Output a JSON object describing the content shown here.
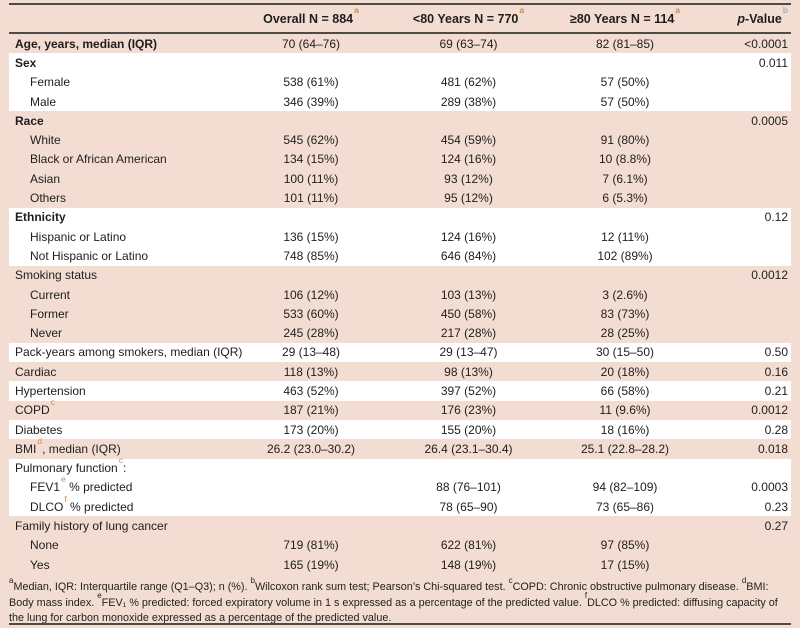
{
  "colors": {
    "page_background": "#f3dcd1",
    "band_white": "#ffffff",
    "rule": "#4e4a45",
    "superscript_orange": "#cd8a50",
    "superscript_blue": "#8fb9cf",
    "text": "#1e1e1e"
  },
  "table": {
    "columns": [
      {
        "label": "",
        "align": "left"
      },
      {
        "label": "Overall N = 884",
        "sup": "a",
        "sup_color": "#cd8a50",
        "align": "center"
      },
      {
        "label": "<80 Years N = 770",
        "sup": "a",
        "sup_color": "#cd8a50",
        "align": "center"
      },
      {
        "label": "≥80 Years N = 114",
        "sup": "a",
        "sup_color": "#cd8a50",
        "align": "center"
      },
      {
        "italic_pre": "p",
        "label": "-Value",
        "sup": "b",
        "sup_color": "#8fb9cf",
        "align": "right"
      }
    ],
    "rows": [
      {
        "label": "Age, years, median (IQR)",
        "bold": true,
        "indent": 0,
        "band": "pink",
        "overall": "70 (64–76)",
        "under80": "69 (63–74)",
        "over80": "82 (81–85)",
        "p": "<0.0001"
      },
      {
        "label": "Sex",
        "bold": true,
        "indent": 0,
        "band": "white",
        "overall": "",
        "under80": "",
        "over80": "",
        "p": "0.011"
      },
      {
        "label": "Female",
        "bold": false,
        "indent": 1,
        "band": "white",
        "overall": "538 (61%)",
        "under80": "481 (62%)",
        "over80": "57 (50%)",
        "p": ""
      },
      {
        "label": "Male",
        "bold": false,
        "indent": 1,
        "band": "white",
        "overall": "346 (39%)",
        "under80": "289 (38%)",
        "over80": "57 (50%)",
        "p": ""
      },
      {
        "label": "Race",
        "bold": true,
        "indent": 0,
        "band": "pink",
        "overall": "",
        "under80": "",
        "over80": "",
        "p": "0.0005"
      },
      {
        "label": "White",
        "bold": false,
        "indent": 1,
        "band": "pink",
        "overall": "545 (62%)",
        "under80": "454 (59%)",
        "over80": "91 (80%)",
        "p": ""
      },
      {
        "label": "Black or African American",
        "bold": false,
        "indent": 1,
        "band": "pink",
        "overall": "134 (15%)",
        "under80": "124 (16%)",
        "over80": "10 (8.8%)",
        "p": ""
      },
      {
        "label": "Asian",
        "bold": false,
        "indent": 1,
        "band": "pink",
        "overall": "100 (11%)",
        "under80": "93 (12%)",
        "over80": "7 (6.1%)",
        "p": ""
      },
      {
        "label": "Others",
        "bold": false,
        "indent": 1,
        "band": "pink",
        "overall": "101 (11%)",
        "under80": "95 (12%)",
        "over80": "6 (5.3%)",
        "p": ""
      },
      {
        "label": "Ethnicity",
        "bold": true,
        "indent": 0,
        "band": "white",
        "overall": "",
        "under80": "",
        "over80": "",
        "p": "0.12"
      },
      {
        "label": "Hispanic or Latino",
        "bold": false,
        "indent": 1,
        "band": "white",
        "overall": "136 (15%)",
        "under80": "124 (16%)",
        "over80": "12 (11%)",
        "p": ""
      },
      {
        "label": "Not Hispanic or Latino",
        "bold": false,
        "indent": 1,
        "band": "white",
        "overall": "748 (85%)",
        "under80": "646 (84%)",
        "over80": "102 (89%)",
        "p": ""
      },
      {
        "label": "Smoking status",
        "bold": false,
        "indent": 0,
        "band": "pink",
        "overall": "",
        "under80": "",
        "over80": "",
        "p": "0.0012"
      },
      {
        "label": "Current",
        "bold": false,
        "indent": 1,
        "band": "pink",
        "overall": "106 (12%)",
        "under80": "103 (13%)",
        "over80": "3 (2.6%)",
        "p": ""
      },
      {
        "label": "Former",
        "bold": false,
        "indent": 1,
        "band": "pink",
        "overall": "533 (60%)",
        "under80": "450 (58%)",
        "over80": "83 (73%)",
        "p": ""
      },
      {
        "label": "Never",
        "bold": false,
        "indent": 1,
        "band": "pink",
        "overall": "245 (28%)",
        "under80": "217 (28%)",
        "over80": "28 (25%)",
        "p": ""
      },
      {
        "label": "Pack-years among smokers, median (IQR)",
        "bold": false,
        "indent": 0,
        "band": "white",
        "overall": "29 (13–48)",
        "under80": "29 (13–47)",
        "over80": "30 (15–50)",
        "p": "0.50"
      },
      {
        "label": "Cardiac",
        "bold": false,
        "indent": 0,
        "band": "pink",
        "overall": "118 (13%)",
        "under80": "98 (13%)",
        "over80": "20 (18%)",
        "p": "0.16"
      },
      {
        "label": "Hypertension",
        "bold": false,
        "indent": 0,
        "band": "white",
        "overall": "463 (52%)",
        "under80": "397 (52%)",
        "over80": "66 (58%)",
        "p": "0.21"
      },
      {
        "label": "COPD",
        "sup": "c",
        "bold": false,
        "indent": 0,
        "band": "pink",
        "overall": "187 (21%)",
        "under80": "176 (23%)",
        "over80": "11 (9.6%)",
        "p": "0.0012"
      },
      {
        "label": "Diabetes",
        "bold": false,
        "indent": 0,
        "band": "white",
        "overall": "173 (20%)",
        "under80": "155 (20%)",
        "over80": "18 (16%)",
        "p": "0.28"
      },
      {
        "label": "BMI",
        "sup": "d",
        "after": ", median (IQR)",
        "bold": false,
        "indent": 0,
        "band": "pink",
        "overall": "26.2 (23.0–30.2)",
        "under80": "26.4 (23.1–30.4)",
        "over80": "25.1 (22.8–28.2)",
        "p": "0.018"
      },
      {
        "label": "Pulmonary function",
        "sup": "c",
        "after": ":",
        "bold": false,
        "indent": 0,
        "band": "white",
        "overall": "",
        "under80": "",
        "over80": "",
        "p": ""
      },
      {
        "label": "FEV1",
        "sup": "e",
        "after": " % predicted",
        "bold": false,
        "indent": 1,
        "band": "white",
        "overall": "",
        "under80": "88 (76–101)",
        "over80": "94 (82–109)",
        "p": "0.0003"
      },
      {
        "label": "DLCO",
        "sup": "f",
        "after": " % predicted",
        "bold": false,
        "indent": 1,
        "band": "white",
        "overall": "",
        "under80": "78 (65–90)",
        "over80": "73 (65–86)",
        "p": "0.23"
      },
      {
        "label": "Family history of lung cancer",
        "bold": false,
        "indent": 0,
        "band": "pink",
        "overall": "",
        "under80": "",
        "over80": "",
        "p": "0.27"
      },
      {
        "label": "None",
        "bold": false,
        "indent": 1,
        "band": "pink",
        "overall": "719 (81%)",
        "under80": "622 (81%)",
        "over80": "97 (85%)",
        "p": ""
      },
      {
        "label": "Yes",
        "bold": false,
        "indent": 1,
        "band": "pink",
        "overall": "165 (19%)",
        "under80": "148 (19%)",
        "over80": "17 (15%)",
        "p": ""
      }
    ]
  },
  "footnotes": [
    {
      "sup": "a",
      "text": "Median, IQR: Interquartile range (Q1–Q3); n (%). "
    },
    {
      "sup": "b",
      "text": "Wilcoxon rank sum test; Pearson’s Chi-squared test. "
    },
    {
      "sup": "c",
      "text": "COPD: Chronic obstructive pulmonary disease. "
    },
    {
      "sup": "d",
      "text": "BMI: Body mass index. "
    },
    {
      "sup": "e",
      "text": "FEV₁ % predicted: forced expiratory volume in 1 s expressed as a percentage of the predicted value. "
    },
    {
      "sup": "f",
      "text": "DLCO % predicted: diffusing capacity of the lung for carbon monoxide expressed as a percentage of the predicted value."
    }
  ]
}
